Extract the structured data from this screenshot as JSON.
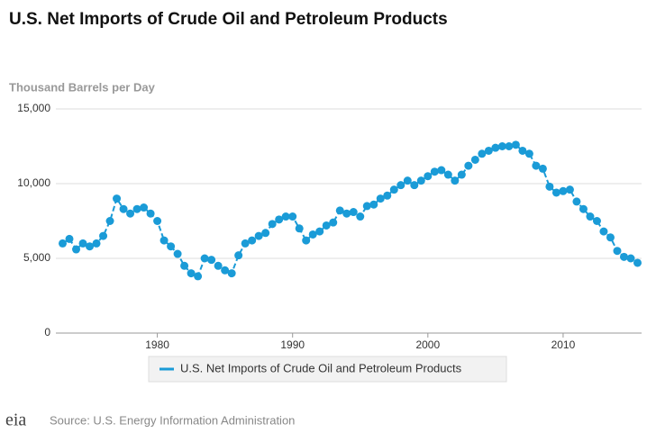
{
  "chart_data": {
    "type": "line",
    "title": "U.S. Net Imports of Crude Oil and Petroleum Products",
    "y_label": "Thousand Barrels per Day",
    "source": "Source: U.S. Energy Information Administration",
    "logo": "eia",
    "x": [
      1973,
      1973.5,
      1974,
      1974.5,
      1975,
      1975.5,
      1976,
      1976.5,
      1977,
      1977.5,
      1978,
      1978.5,
      1979,
      1979.5,
      1980,
      1980.5,
      1981,
      1981.5,
      1982,
      1982.5,
      1983,
      1983.5,
      1984,
      1984.5,
      1985,
      1985.5,
      1986,
      1986.5,
      1987,
      1987.5,
      1988,
      1988.5,
      1989,
      1989.5,
      1990,
      1990.5,
      1991,
      1991.5,
      1992,
      1992.5,
      1993,
      1993.5,
      1994,
      1994.5,
      1995,
      1995.5,
      1996,
      1996.5,
      1997,
      1997.5,
      1998,
      1998.5,
      1999,
      1999.5,
      2000,
      2000.5,
      2001,
      2001.5,
      2002,
      2002.5,
      2003,
      2003.5,
      2004,
      2004.5,
      2005,
      2005.5,
      2006,
      2006.5,
      2007,
      2007.5,
      2008,
      2008.5,
      2009,
      2009.5,
      2010,
      2010.5,
      2011,
      2011.5,
      2012,
      2012.5,
      2013,
      2013.5,
      2014,
      2014.5,
      2015,
      2015.5
    ],
    "series": [
      {
        "name": "U.S. Net Imports of Crude Oil and Petroleum Products",
        "color": "#1a9bd7",
        "values": [
          6000,
          6300,
          5600,
          6000,
          5800,
          6000,
          6500,
          7500,
          9000,
          8300,
          8000,
          8300,
          8400,
          8000,
          7500,
          6200,
          5800,
          5300,
          4500,
          4000,
          3800,
          5000,
          4900,
          4500,
          4200,
          4000,
          5200,
          6000,
          6200,
          6500,
          6700,
          7300,
          7600,
          7800,
          7800,
          7000,
          6200,
          6600,
          6800,
          7200,
          7400,
          8200,
          8000,
          8100,
          7800,
          8500,
          8600,
          9000,
          9200,
          9600,
          9900,
          10200,
          9900,
          10200,
          10500,
          10800,
          10900,
          10600,
          10200,
          10600,
          11200,
          11600,
          12000,
          12200,
          12400,
          12500,
          12500,
          12600,
          12200,
          12000,
          11200,
          11000,
          9800,
          9400,
          9500,
          9600,
          8800,
          8300,
          7800,
          7500,
          6800,
          6400,
          5500,
          5100,
          5000,
          4700
        ]
      }
    ],
    "xlim": [
      1972.5,
      2015.8
    ],
    "xticks": [
      1980,
      1990,
      2000,
      2010
    ],
    "ylim": [
      0,
      15000
    ],
    "yticks": [
      0,
      {
        "value": 5000,
        "label": "5,000"
      },
      {
        "value": 10000,
        "label": "10,000"
      },
      {
        "value": 15000,
        "label": "15,000"
      }
    ],
    "grid": true
  }
}
